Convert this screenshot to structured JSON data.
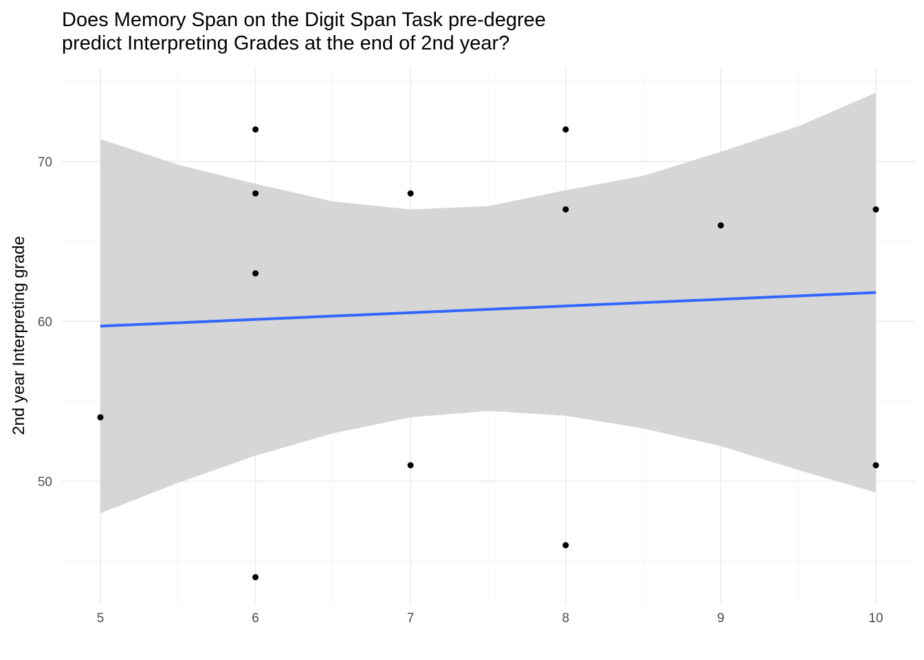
{
  "chart_data": {
    "type": "scatter",
    "title": [
      "Does Memory Span on the Digit Span Task pre-degree",
      "predict Interpreting Grades at the end of 2nd year?"
    ],
    "xlabel": "",
    "ylabel": "2nd year Interpreting grade",
    "xlim": [
      4.8,
      10.25
    ],
    "ylim": [
      42.7,
      75.8
    ],
    "x_ticks": [
      5,
      6,
      7,
      8,
      9,
      10
    ],
    "y_ticks": [
      50,
      60,
      70
    ],
    "grid": true,
    "points": [
      {
        "x": 5,
        "y": 54
      },
      {
        "x": 6,
        "y": 72
      },
      {
        "x": 6,
        "y": 68
      },
      {
        "x": 6,
        "y": 63
      },
      {
        "x": 6,
        "y": 44
      },
      {
        "x": 7,
        "y": 68
      },
      {
        "x": 7,
        "y": 51
      },
      {
        "x": 8,
        "y": 72
      },
      {
        "x": 8,
        "y": 67
      },
      {
        "x": 8,
        "y": 46
      },
      {
        "x": 9,
        "y": 66
      },
      {
        "x": 10,
        "y": 67
      },
      {
        "x": 10,
        "y": 51
      }
    ],
    "fit_line": {
      "x": [
        5,
        10
      ],
      "y": [
        59.7,
        61.8
      ],
      "color": "#3366ff"
    },
    "confidence_band": {
      "color": "#999999",
      "x": [
        5,
        5.5,
        6,
        6.5,
        7,
        7.5,
        8,
        8.5,
        9,
        9.5,
        10
      ],
      "upper": [
        71.4,
        69.8,
        68.6,
        67.5,
        67.0,
        67.2,
        68.2,
        69.1,
        70.6,
        72.2,
        74.3
      ],
      "lower": [
        48.0,
        49.9,
        51.6,
        53.0,
        54.0,
        54.4,
        54.1,
        53.3,
        52.2,
        50.7,
        49.3
      ]
    },
    "colors": {
      "points": "#000000",
      "grid": "#ebebeb",
      "band_fill": "#d6d6d6"
    }
  }
}
